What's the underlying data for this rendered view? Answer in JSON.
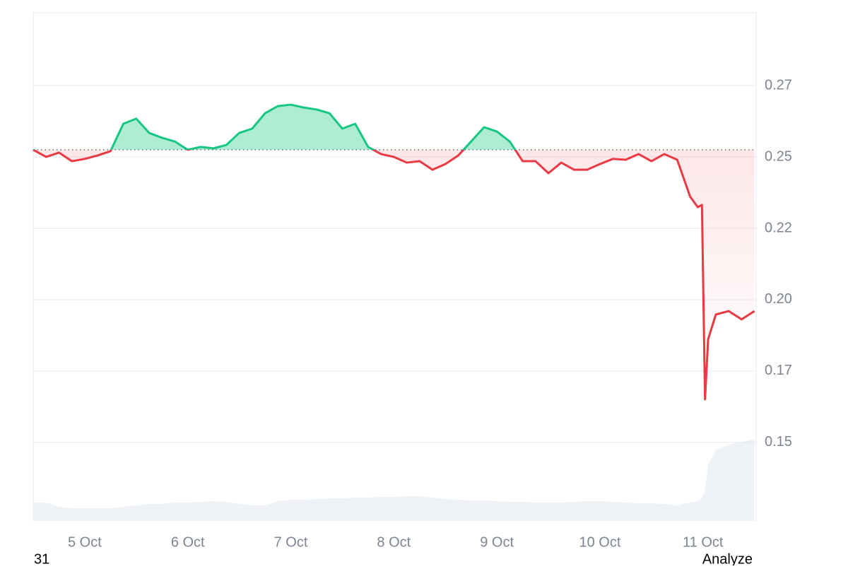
{
  "chart_data": {
    "type": "line",
    "x": [
      4.5,
      4.625,
      4.75,
      4.875,
      5.0,
      5.125,
      5.25,
      5.375,
      5.5,
      5.625,
      5.75,
      5.875,
      6.0,
      6.125,
      6.25,
      6.375,
      6.5,
      6.625,
      6.75,
      6.875,
      7.0,
      7.125,
      7.25,
      7.375,
      7.5,
      7.625,
      7.75,
      7.875,
      8.0,
      8.125,
      8.25,
      8.375,
      8.5,
      8.625,
      8.75,
      8.875,
      9.0,
      9.125,
      9.25,
      9.375,
      9.5,
      9.625,
      9.75,
      9.875,
      10.0,
      10.125,
      10.25,
      10.375,
      10.5,
      10.625,
      10.75,
      10.875,
      10.95,
      10.99,
      11.02,
      11.05,
      11.125,
      11.25,
      11.375,
      11.5
    ],
    "values": [
      0.2525,
      0.25,
      0.2515,
      0.2485,
      0.2493,
      0.2505,
      0.252,
      0.2616,
      0.2634,
      0.2584,
      0.2567,
      0.2554,
      0.2525,
      0.2535,
      0.253,
      0.2542,
      0.2584,
      0.2599,
      0.2653,
      0.2678,
      0.2683,
      0.2673,
      0.2666,
      0.2653,
      0.2599,
      0.2616,
      0.2535,
      0.251,
      0.25,
      0.248,
      0.2485,
      0.2455,
      0.2475,
      0.2505,
      0.2554,
      0.2604,
      0.2589,
      0.2554,
      0.2485,
      0.2485,
      0.2443,
      0.248,
      0.2455,
      0.2455,
      0.2475,
      0.2493,
      0.249,
      0.251,
      0.2485,
      0.251,
      0.249,
      0.2361,
      0.2324,
      0.2332,
      0.1651,
      0.1861,
      0.1948,
      0.196,
      0.1931,
      0.196
    ],
    "baseline": 0.2525,
    "colors": {
      "up": "#16c784",
      "down": "#ea3943"
    },
    "volume": {
      "color": "#eef1f5",
      "axis": "y2",
      "values": [
        26,
        26,
        20,
        18,
        18,
        18,
        18,
        20,
        22,
        24,
        24,
        26,
        26,
        27,
        28,
        27,
        24,
        22,
        22,
        28,
        30,
        30,
        31,
        32,
        32,
        33,
        33,
        34,
        34,
        35,
        35,
        33,
        31,
        30,
        29,
        29,
        28,
        27,
        27,
        26,
        26,
        26,
        27,
        28,
        28,
        27,
        26,
        25,
        25,
        24,
        22,
        26,
        28,
        32,
        45,
        80,
        100,
        108,
        112,
        116
      ]
    },
    "y2lim": [
      0,
      720
    ],
    "xlim": [
      4.5,
      11.516
    ],
    "xticks": [
      {
        "value": 5,
        "label": "5 Oct"
      },
      {
        "value": 6,
        "label": "6 Oct"
      },
      {
        "value": 7,
        "label": "7 Oct"
      },
      {
        "value": 8,
        "label": "8 Oct"
      },
      {
        "value": 9,
        "label": "9 Oct"
      },
      {
        "value": 10,
        "label": "10 Oct"
      },
      {
        "value": 11,
        "label": "11 Oct"
      }
    ],
    "ylim": [
      0.1225,
      0.3005
    ],
    "yticks": [
      0.15,
      {
        "value": 0.175,
        "label": "0.17"
      },
      {
        "value": 0.2,
        "label": "0.20"
      },
      {
        "value": 0.225,
        "label": "0.22"
      },
      0.25,
      {
        "value": 0.275,
        "label": "0.27"
      }
    ],
    "grid": true
  },
  "footer": {
    "left": "31",
    "right": "Analyze"
  }
}
